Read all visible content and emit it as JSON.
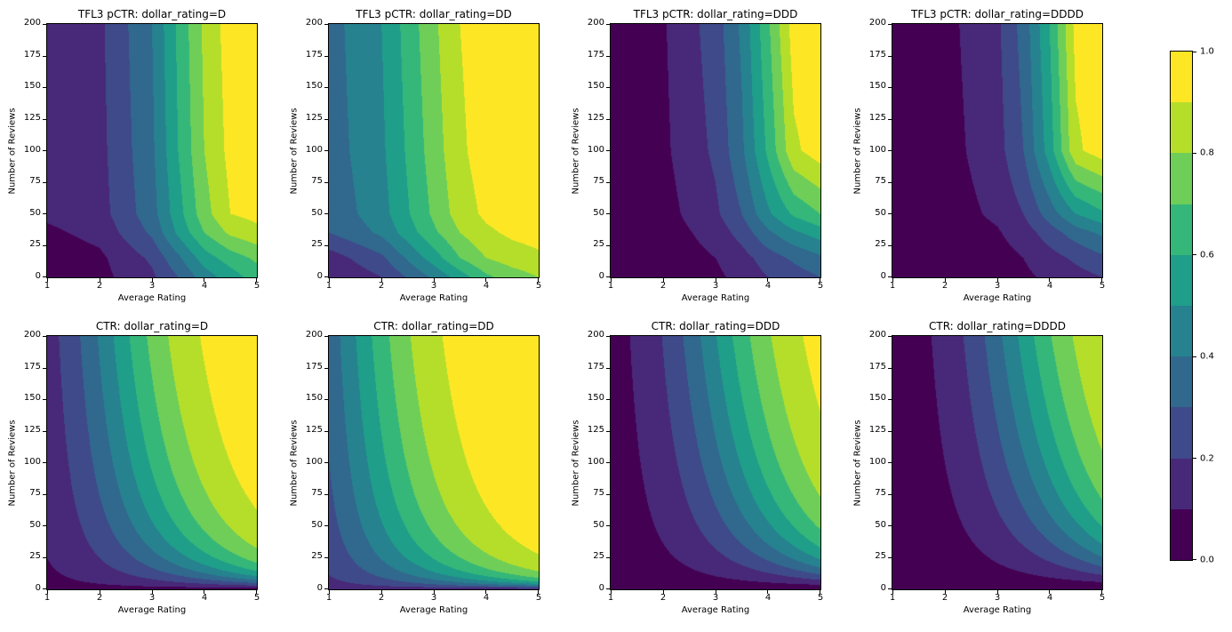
{
  "figure": {
    "background": "#ffffff"
  },
  "chart_data": {
    "type": "heatmap",
    "subtype": "filled-contour",
    "colormap": "viridis",
    "layout": {
      "rows": 2,
      "cols": 4,
      "colorbar_position": "right",
      "grid": false
    },
    "x_axis": {
      "label": "Average Rating",
      "min": 1,
      "max": 5,
      "ticks": [
        1,
        2,
        3,
        4,
        5
      ]
    },
    "y_axis": {
      "label": "Number of Reviews",
      "min": 0,
      "max": 200,
      "ticks": [
        0,
        25,
        50,
        75,
        100,
        125,
        150,
        175,
        200
      ]
    },
    "levels": [
      0,
      0.1,
      0.2,
      0.3,
      0.4,
      0.5,
      0.6,
      0.7,
      0.8,
      0.9,
      1.0
    ],
    "band_colors": [
      "#440154",
      "#482878",
      "#3e4a89",
      "#31688e",
      "#26828e",
      "#1f9e89",
      "#35b779",
      "#6ece58",
      "#b5de2b",
      "#fde725"
    ],
    "colorbar": {
      "min": 0.0,
      "max": 1.0,
      "tick_labels": [
        "0.0",
        "0.2",
        "0.4",
        "0.6",
        "0.8",
        "1.0"
      ]
    },
    "value_model": "bottom row: value = sigmoid(avg_rating * log1p(num_reviews)/4 - baseline); top row: bilinear interpolation of the lattice grid below (estimated from the pixels)",
    "lattice": {
      "avg_keypoints": [
        1,
        2,
        3,
        3.5,
        4,
        4.5,
        5
      ],
      "review_keypoints": [
        0,
        15,
        35,
        50,
        100,
        200
      ]
    },
    "subplots": [
      {
        "title": "TFL3 pCTR: dollar_rating=D",
        "row": 0,
        "col": 0,
        "series": "TFL3 pCTR",
        "dollar_rating": "D",
        "model": "lattice",
        "baseline": 3.0,
        "grid": [
          [
            0.03,
            0.07,
            0.18,
            0.3,
            0.45,
            0.55,
            0.65
          ],
          [
            0.04,
            0.08,
            0.22,
            0.38,
            0.55,
            0.65,
            0.72
          ],
          [
            0.08,
            0.13,
            0.32,
            0.52,
            0.7,
            0.82,
            0.87
          ],
          [
            0.12,
            0.16,
            0.36,
            0.56,
            0.76,
            0.9,
            0.93
          ],
          [
            0.13,
            0.17,
            0.38,
            0.6,
            0.8,
            0.93,
            0.97
          ],
          [
            0.13,
            0.18,
            0.4,
            0.62,
            0.82,
            0.95,
            0.98
          ]
        ]
      },
      {
        "title": "TFL3 pCTR: dollar_rating=DD",
        "row": 0,
        "col": 1,
        "series": "TFL3 pCTR",
        "dollar_rating": "DD",
        "model": "lattice",
        "baseline": 2.0,
        "grid": [
          [
            0.1,
            0.2,
            0.42,
            0.55,
            0.68,
            0.75,
            0.8
          ],
          [
            0.15,
            0.28,
            0.55,
            0.7,
            0.8,
            0.85,
            0.88
          ],
          [
            0.3,
            0.42,
            0.68,
            0.8,
            0.88,
            0.92,
            0.94
          ],
          [
            0.33,
            0.46,
            0.72,
            0.85,
            0.92,
            0.95,
            0.96
          ],
          [
            0.35,
            0.48,
            0.75,
            0.88,
            0.95,
            0.97,
            0.98
          ],
          [
            0.36,
            0.5,
            0.78,
            0.9,
            0.96,
            0.98,
            0.99
          ]
        ]
      },
      {
        "title": "TFL3 pCTR: dollar_rating=DDD",
        "row": 0,
        "col": 2,
        "series": "TFL3 pCTR",
        "dollar_rating": "DDD",
        "model": "lattice",
        "baseline": 4.0,
        "grid": [
          [
            0.02,
            0.03,
            0.08,
            0.13,
            0.2,
            0.25,
            0.3
          ],
          [
            0.02,
            0.04,
            0.1,
            0.16,
            0.25,
            0.32,
            0.38
          ],
          [
            0.03,
            0.05,
            0.14,
            0.24,
            0.38,
            0.48,
            0.55
          ],
          [
            0.04,
            0.06,
            0.18,
            0.3,
            0.48,
            0.62,
            0.7
          ],
          [
            0.05,
            0.08,
            0.22,
            0.38,
            0.62,
            0.88,
            0.95
          ],
          [
            0.05,
            0.09,
            0.25,
            0.42,
            0.68,
            0.95,
            0.97
          ]
        ]
      },
      {
        "title": "TFL3 pCTR: dollar_rating=DDDD",
        "row": 0,
        "col": 3,
        "series": "TFL3 pCTR",
        "dollar_rating": "DDDD",
        "model": "lattice",
        "baseline": 4.5,
        "grid": [
          [
            0.01,
            0.02,
            0.05,
            0.08,
            0.12,
            0.16,
            0.2
          ],
          [
            0.01,
            0.03,
            0.06,
            0.1,
            0.16,
            0.22,
            0.28
          ],
          [
            0.02,
            0.04,
            0.09,
            0.15,
            0.25,
            0.35,
            0.42
          ],
          [
            0.02,
            0.05,
            0.12,
            0.2,
            0.35,
            0.5,
            0.58
          ],
          [
            0.03,
            0.06,
            0.16,
            0.3,
            0.55,
            0.88,
            0.95
          ],
          [
            0.03,
            0.07,
            0.18,
            0.34,
            0.6,
            0.93,
            0.96
          ]
        ]
      },
      {
        "title": "CTR: dollar_rating=D",
        "row": 1,
        "col": 0,
        "series": "CTR",
        "dollar_rating": "D",
        "model": "sigmoid",
        "baseline": 3.0
      },
      {
        "title": "CTR: dollar_rating=DD",
        "row": 1,
        "col": 1,
        "series": "CTR",
        "dollar_rating": "DD",
        "model": "sigmoid",
        "baseline": 2.0
      },
      {
        "title": "CTR: dollar_rating=DDD",
        "row": 1,
        "col": 2,
        "series": "CTR",
        "dollar_rating": "DDD",
        "model": "sigmoid",
        "baseline": 4.0
      },
      {
        "title": "CTR: dollar_rating=DDDD",
        "row": 1,
        "col": 3,
        "series": "CTR",
        "dollar_rating": "DDDD",
        "model": "sigmoid",
        "baseline": 4.5
      }
    ]
  }
}
